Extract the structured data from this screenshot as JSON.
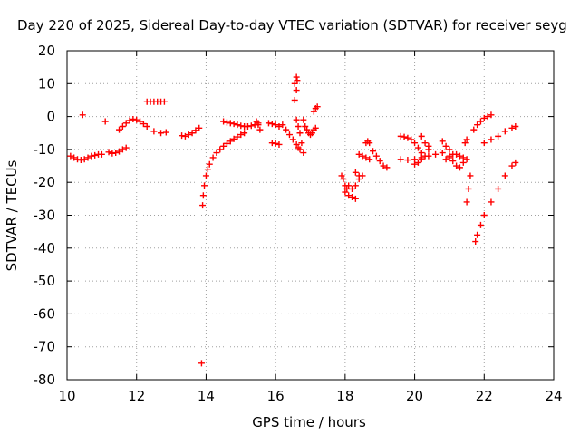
{
  "chart_data": {
    "type": "scatter",
    "title": "Day 220 of 2025, Sidereal Day-to-day VTEC variation (SDTVAR) for receiver seyg",
    "xlabel": "GPS time / hours",
    "ylabel": "SDTVAR / TECUs",
    "xlim": [
      10,
      24
    ],
    "ylim": [
      -80,
      20
    ],
    "xticks": [
      10,
      12,
      14,
      16,
      18,
      20,
      22,
      24
    ],
    "yticks": [
      20,
      10,
      0,
      -10,
      -20,
      -30,
      -40,
      -50,
      -60,
      -70,
      -80
    ],
    "grid": true,
    "marker": "+",
    "color": "#ff0000",
    "segments": [
      {
        "x": [
          10.1,
          10.2,
          10.3,
          10.4,
          10.5,
          10.6,
          10.7,
          10.8,
          10.9,
          11.0
        ],
        "y": [
          -12,
          -12.5,
          -13,
          -13.2,
          -13,
          -12.5,
          -12,
          -11.8,
          -11.5,
          -11.5
        ]
      },
      {
        "x": [
          10.45,
          11.1
        ],
        "y": [
          0.5,
          -1.5
        ]
      },
      {
        "x": [
          11.2,
          11.3,
          11.4,
          11.5,
          11.6,
          11.7
        ],
        "y": [
          -10.8,
          -11.2,
          -11,
          -10.6,
          -10,
          -9.5
        ]
      },
      {
        "x": [
          11.5,
          11.6,
          11.7,
          11.8,
          11.9,
          12.0,
          12.1,
          12.2,
          12.3
        ],
        "y": [
          -4,
          -3,
          -2,
          -1.2,
          -0.8,
          -1,
          -1.5,
          -2.2,
          -3
        ]
      },
      {
        "x": [
          12.3,
          12.4,
          12.5,
          12.6,
          12.7,
          12.8
        ],
        "y": [
          4.5,
          4.5,
          4.5,
          4.5,
          4.5,
          4.5
        ]
      },
      {
        "x": [
          12.5,
          12.7,
          12.85
        ],
        "y": [
          -4.5,
          -5,
          -4.8
        ]
      },
      {
        "x": [
          13.3,
          13.4,
          13.5,
          13.6,
          13.7,
          13.8
        ],
        "y": [
          -5.8,
          -6,
          -5.5,
          -5,
          -4.2,
          -3.5
        ]
      },
      {
        "x": [
          13.9,
          13.92,
          13.95,
          14.0,
          14.05,
          14.1,
          14.2,
          14.3,
          14.4,
          14.5,
          14.6,
          14.7,
          14.8,
          14.9,
          15.0,
          15.1
        ],
        "y": [
          -27,
          -24,
          -21,
          -18,
          -16,
          -14.5,
          -12.5,
          -11,
          -10,
          -9,
          -8.2,
          -7.5,
          -6.8,
          -6.2,
          -5.5,
          -5
        ]
      },
      {
        "x": [
          13.87
        ],
        "y": [
          -75
        ]
      },
      {
        "x": [
          14.5,
          14.6,
          14.7,
          14.8,
          14.9,
          15.0,
          15.1,
          15.2,
          15.3,
          15.4,
          15.5
        ],
        "y": [
          -1.5,
          -1.8,
          -2,
          -2.2,
          -2.5,
          -2.8,
          -3,
          -3,
          -2.8,
          -2.5,
          -2
        ]
      },
      {
        "x": [
          15.45,
          15.5,
          15.55
        ],
        "y": [
          -1.5,
          -2.5,
          -4
        ]
      },
      {
        "x": [
          15.8,
          15.9,
          16.0,
          16.1
        ],
        "y": [
          -2,
          -2.2,
          -2.5,
          -3
        ]
      },
      {
        "x": [
          15.9,
          16.0,
          16.1
        ],
        "y": [
          -8,
          -8.2,
          -8.5
        ]
      },
      {
        "x": [
          16.2,
          16.3,
          16.4,
          16.5,
          16.6,
          16.65
        ],
        "y": [
          -2.5,
          -4,
          -5.5,
          -7,
          -8.5,
          -9.5
        ]
      },
      {
        "x": [
          16.55,
          16.6,
          16.62,
          16.6,
          16.55
        ],
        "y": [
          5,
          8,
          11,
          12,
          10
        ]
      },
      {
        "x": [
          16.6,
          16.65,
          16.7,
          16.75
        ],
        "y": [
          -1,
          -3,
          -5,
          -8
        ]
      },
      {
        "x": [
          16.7,
          16.8
        ],
        "y": [
          -10,
          -11
        ]
      },
      {
        "x": [
          16.8,
          16.85,
          16.9,
          16.95,
          17.0,
          17.05,
          17.1,
          17.15
        ],
        "y": [
          -1,
          -3,
          -4,
          -5,
          -5.5,
          -5,
          -4,
          -3.5
        ]
      },
      {
        "x": [
          17.1,
          17.15,
          17.2
        ],
        "y": [
          1.5,
          2.5,
          3
        ]
      },
      {
        "x": [
          17.9,
          17.95,
          18.0,
          18.05,
          18.1
        ],
        "y": [
          -18,
          -19,
          -21,
          -22,
          -21
        ]
      },
      {
        "x": [
          18.0,
          18.1,
          18.2,
          18.3
        ],
        "y": [
          -23,
          -24,
          -24.5,
          -25
        ]
      },
      {
        "x": [
          18.2,
          18.3,
          18.4,
          18.5
        ],
        "y": [
          -22,
          -21,
          -19,
          -18
        ]
      },
      {
        "x": [
          18.3,
          18.4
        ],
        "y": [
          -17,
          -18
        ]
      },
      {
        "x": [
          18.4,
          18.5,
          18.6,
          18.7
        ],
        "y": [
          -11.5,
          -12,
          -12.5,
          -13
        ]
      },
      {
        "x": [
          18.6,
          18.65,
          18.7
        ],
        "y": [
          -8,
          -7.5,
          -8
        ]
      },
      {
        "x": [
          18.8,
          18.9,
          19.0,
          19.1,
          19.2
        ],
        "y": [
          -10.5,
          -12,
          -13.5,
          -15,
          -15.5
        ]
      },
      {
        "x": [
          19.6,
          19.7,
          19.8,
          19.9,
          20.0,
          20.1,
          20.2
        ],
        "y": [
          -6,
          -6.2,
          -6.5,
          -7,
          -8,
          -9.5,
          -11
        ]
      },
      {
        "x": [
          19.6,
          19.8,
          20.0,
          20.2,
          20.4,
          20.6,
          20.8
        ],
        "y": [
          -13,
          -13.2,
          -13,
          -12.5,
          -12,
          -11.5,
          -11
        ]
      },
      {
        "x": [
          20.0,
          20.1,
          20.2,
          20.3,
          20.4
        ],
        "y": [
          -14.5,
          -14,
          -13,
          -12,
          -10
        ]
      },
      {
        "x": [
          20.2,
          20.3,
          20.4
        ],
        "y": [
          -6,
          -8,
          -9
        ]
      },
      {
        "x": [
          20.8,
          20.9,
          21.0
        ],
        "y": [
          -7.5,
          -9,
          -10
        ]
      },
      {
        "x": [
          20.9,
          21.0,
          21.1,
          21.2,
          21.3,
          21.4,
          21.5
        ],
        "y": [
          -13,
          -12,
          -11.5,
          -11.5,
          -12,
          -12.5,
          -13
        ]
      },
      {
        "x": [
          21.0,
          21.1,
          21.2,
          21.3,
          21.4
        ],
        "y": [
          -12.5,
          -13.5,
          -15,
          -15.5,
          -14
        ]
      },
      {
        "x": [
          21.5,
          21.55,
          21.6
        ],
        "y": [
          -26,
          -22,
          -18
        ]
      },
      {
        "x": [
          21.45,
          21.5
        ],
        "y": [
          -8,
          -7
        ]
      },
      {
        "x": [
          21.7,
          21.8,
          21.9,
          22.0,
          22.1,
          22.2
        ],
        "y": [
          -4,
          -2.5,
          -1.5,
          -0.5,
          0,
          0.5
        ]
      },
      {
        "x": [
          21.75,
          21.8,
          21.9,
          22.0,
          22.2,
          22.4,
          22.6,
          22.8,
          22.9
        ],
        "y": [
          -38,
          -36,
          -33,
          -30,
          -26,
          -22,
          -18,
          -15,
          -14
        ]
      },
      {
        "x": [
          22.0,
          22.2,
          22.4,
          22.6,
          22.8,
          22.9
        ],
        "y": [
          -8,
          -7,
          -6,
          -4.5,
          -3.5,
          -3
        ]
      }
    ]
  }
}
